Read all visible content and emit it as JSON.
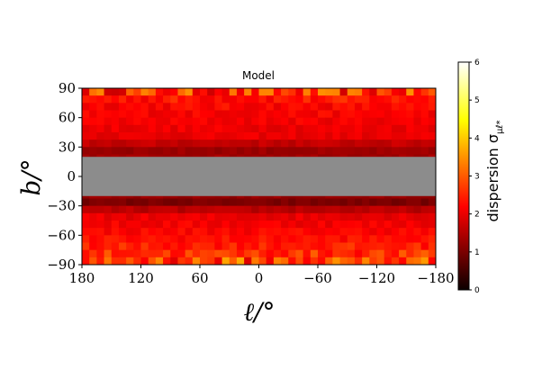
{
  "chart_data": {
    "type": "heatmap",
    "title": "Model",
    "xlabel": "ℓ/°",
    "ylabel": "b/°",
    "x_ticks": [
      "180",
      "120",
      "60",
      "0",
      "−60",
      "−120",
      "−180"
    ],
    "x_tick_values": [
      180,
      120,
      60,
      0,
      -60,
      -120,
      -180
    ],
    "y_ticks": [
      "90",
      "60",
      "30",
      "0",
      "−30",
      "−60",
      "−90"
    ],
    "y_tick_values": [
      90,
      60,
      30,
      0,
      -30,
      -60,
      -90
    ],
    "xlim": [
      180,
      -180
    ],
    "ylim": [
      -90,
      90
    ],
    "masked_band": {
      "b_min": -20,
      "b_max": 20,
      "color": "#8c8c8c"
    },
    "colorbar": {
      "label": "dispersion σ",
      "label_subscript": "μℓ*",
      "ticks": [
        "0",
        "1",
        "2",
        "3",
        "4",
        "5",
        "6"
      ],
      "tick_values": [
        0,
        1,
        2,
        3,
        4,
        5,
        6
      ],
      "range": [
        0,
        6
      ],
      "colormap": "hot"
    },
    "grid": {
      "n_l": 48,
      "n_b": 22,
      "cell_b_deg": 7.5,
      "row_centers_b": [
        86.25,
        78.75,
        71.25,
        63.75,
        56.25,
        48.75,
        41.25,
        33.75,
        26.25,
        18.75,
        11.25,
        -11.25,
        -18.75,
        -26.25,
        -33.75,
        -41.25,
        -48.75,
        -56.25,
        -63.75,
        -71.25,
        -78.75,
        -86.25
      ],
      "row_mean_values": [
        2.6,
        2.35,
        2.2,
        2.15,
        2.1,
        2.05,
        2.0,
        1.65,
        1.3,
        1.35,
        null,
        null,
        1.25,
        1.0,
        1.55,
        2.0,
        2.1,
        2.2,
        2.3,
        2.45,
        2.6,
        2.8
      ],
      "row_noise": [
        0.9,
        0.35,
        0.25,
        0.2,
        0.18,
        0.18,
        0.15,
        0.15,
        0.12,
        0.12,
        null,
        null,
        0.12,
        0.12,
        0.15,
        0.18,
        0.2,
        0.2,
        0.22,
        0.3,
        0.45,
        0.95
      ]
    }
  }
}
